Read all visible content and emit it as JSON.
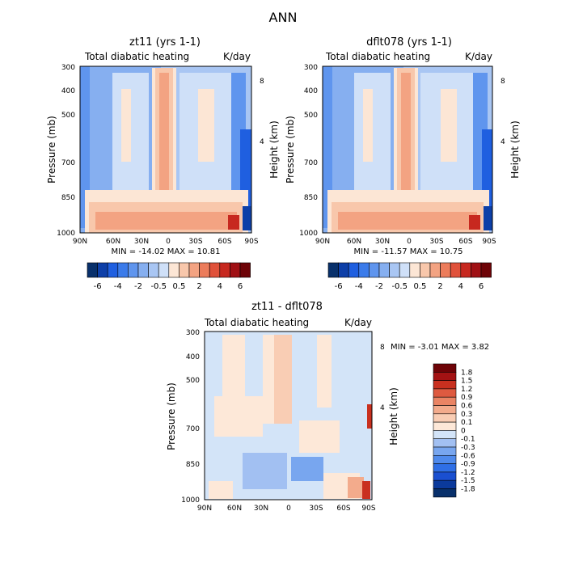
{
  "page_title": "ANN",
  "palette": {
    "neg": [
      "#08306b",
      "#0d3fa8",
      "#1f5fe0",
      "#3b7bea",
      "#5f95ee",
      "#86aff0",
      "#a9c6f3",
      "#cfe0f8"
    ],
    "pos": [
      "#fce6d5",
      "#f8c7ab",
      "#f3a382",
      "#ec7c5b",
      "#e0513a",
      "#c7281f",
      "#a01014",
      "#6e0307"
    ],
    "neg_light": [
      "#08306b",
      "#0b3a9c",
      "#1a4fd0",
      "#2f6fe6",
      "#4f8aec",
      "#78a6ef",
      "#a2c0f2",
      "#d3e4f8"
    ],
    "pos_light": [
      "#fde8d8",
      "#f9cdb4",
      "#f3ab8c",
      "#ea8464",
      "#de5a40",
      "#c9301f",
      "#a41213",
      "#6e0307"
    ]
  },
  "panels": [
    {
      "title": "zt11 (yrs 1-1)",
      "subtitle_left": "Total diabatic heating",
      "subtitle_right": "K/day",
      "ylabel": "Pressure (mb)",
      "ylabel_right": "Height (km)",
      "stats": "MIN = -14.02   MAX =  10.81",
      "colorbar_labels": [
        "-6",
        "-4",
        "-2",
        "-0.5",
        "0.5",
        "2",
        "4",
        "6"
      ]
    },
    {
      "title": "dflt078 (yrs 1-1)",
      "subtitle_left": "Total diabatic heating",
      "subtitle_right": "K/day",
      "ylabel": "Pressure (mb)",
      "ylabel_right": "Height (km)",
      "stats": "MIN = -11.57   MAX =  10.75",
      "colorbar_labels": [
        "-6",
        "-4",
        "-2",
        "-0.5",
        "0.5",
        "2",
        "4",
        "6"
      ]
    },
    {
      "title": "zt11 - dflt078",
      "subtitle_left": "Total diabatic heating",
      "subtitle_right": "K/day",
      "ylabel": "Pressure (mb)",
      "ylabel_right": "Height (km)",
      "stats": "MIN =   -3.01   MAX =   3.82",
      "colorbar_labels": [
        "1.8",
        "1.5",
        "1.2",
        "0.9",
        "0.6",
        "0.3",
        "0.1",
        "0",
        "-0.1",
        "-0.3",
        "-0.6",
        "-0.9",
        "-1.2",
        "-1.5",
        "-1.8"
      ]
    }
  ],
  "chart_data": [
    {
      "type": "heatmap",
      "title": "zt11 (yrs 1-1)",
      "subtitle": "Total diabatic heating",
      "units": "K/day",
      "x_ticks": [
        "90N",
        "60N",
        "30N",
        "0",
        "30S",
        "60S",
        "90S"
      ],
      "y_ticks_pressure": [
        "300",
        "400",
        "500",
        "700",
        "850",
        "1000"
      ],
      "y_ticks_height": [
        "8",
        "4"
      ],
      "xlabel": "",
      "ylabel": "Pressure (mb)",
      "ylabel_right": "Height (km)",
      "min": -14.02,
      "max": 10.81,
      "contour_levels": [
        -6,
        -4,
        -2,
        -0.5,
        0.5,
        2,
        4,
        6
      ]
    },
    {
      "type": "heatmap",
      "title": "dflt078 (yrs 1-1)",
      "subtitle": "Total diabatic heating",
      "units": "K/day",
      "x_ticks": [
        "90N",
        "60N",
        "30N",
        "0",
        "30S",
        "60S",
        "90S"
      ],
      "y_ticks_pressure": [
        "300",
        "400",
        "500",
        "700",
        "850",
        "1000"
      ],
      "y_ticks_height": [
        "8",
        "4"
      ],
      "xlabel": "",
      "ylabel": "Pressure (mb)",
      "ylabel_right": "Height (km)",
      "min": -11.57,
      "max": 10.75,
      "contour_levels": [
        -6,
        -4,
        -2,
        -0.5,
        0.5,
        2,
        4,
        6
      ]
    },
    {
      "type": "heatmap",
      "title": "zt11 - dflt078",
      "subtitle": "Total diabatic heating",
      "units": "K/day",
      "x_ticks": [
        "90N",
        "60N",
        "30N",
        "0",
        "30S",
        "60S",
        "90S"
      ],
      "y_ticks_pressure": [
        "300",
        "400",
        "500",
        "700",
        "850",
        "1000"
      ],
      "y_ticks_height": [
        "8",
        "4"
      ],
      "xlabel": "",
      "ylabel": "Pressure (mb)",
      "ylabel_right": "Height (km)",
      "min": -3.01,
      "max": 3.82,
      "contour_levels": [
        -1.8,
        -1.5,
        -1.2,
        -0.9,
        -0.6,
        -0.3,
        -0.1,
        0,
        0.1,
        0.3,
        0.6,
        0.9,
        1.2,
        1.5,
        1.8
      ]
    }
  ]
}
